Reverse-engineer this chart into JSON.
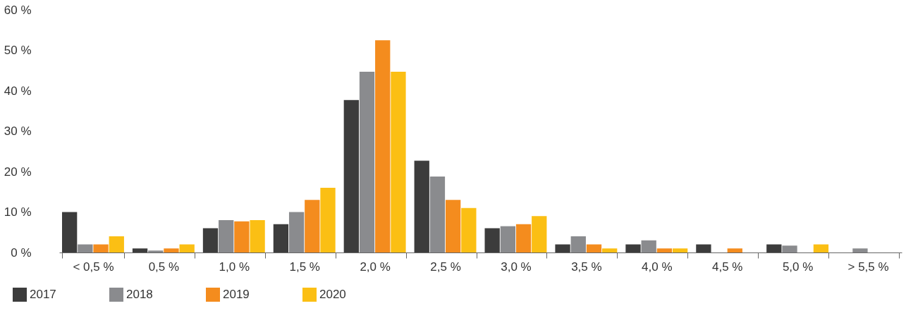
{
  "chart_data": {
    "type": "bar",
    "categories": [
      "< 0,5 %",
      "0,5 %",
      "1,0 %",
      "1,5 %",
      "2,0 %",
      "2,5 %",
      "3,0 %",
      "3,5 %",
      "4,0 %",
      "4,5 %",
      "5,0 %",
      "> 5,5 %"
    ],
    "series": [
      {
        "name": "2017",
        "color": "#3c3c3c",
        "values": [
          10,
          1,
          6,
          7,
          37.7,
          22.7,
          6,
          2,
          2,
          2,
          2,
          0
        ]
      },
      {
        "name": "2018",
        "color": "#8a8b8e",
        "values": [
          2,
          0.5,
          8,
          10,
          44.7,
          18.8,
          6.5,
          4,
          3,
          0,
          1.7,
          1
        ]
      },
      {
        "name": "2019",
        "color": "#f48c1e",
        "values": [
          2,
          1,
          7.7,
          13,
          52.5,
          13,
          7,
          2,
          1,
          1,
          0,
          0
        ]
      },
      {
        "name": "2020",
        "color": "#fbbf14",
        "values": [
          4,
          2,
          8,
          16,
          44.7,
          11,
          9,
          1,
          1,
          0,
          2,
          0
        ]
      }
    ],
    "ylim": [
      0,
      60
    ],
    "yticks": [
      {
        "value": 0,
        "label": "0 %"
      },
      {
        "value": 10,
        "label": "10 %"
      },
      {
        "value": 20,
        "label": "20 %"
      },
      {
        "value": 30,
        "label": "30 %"
      },
      {
        "value": 40,
        "label": "40 %"
      },
      {
        "value": 50,
        "label": "50 %"
      },
      {
        "value": 60,
        "label": "60 %"
      }
    ],
    "grid": false,
    "legend": "bottom left"
  }
}
